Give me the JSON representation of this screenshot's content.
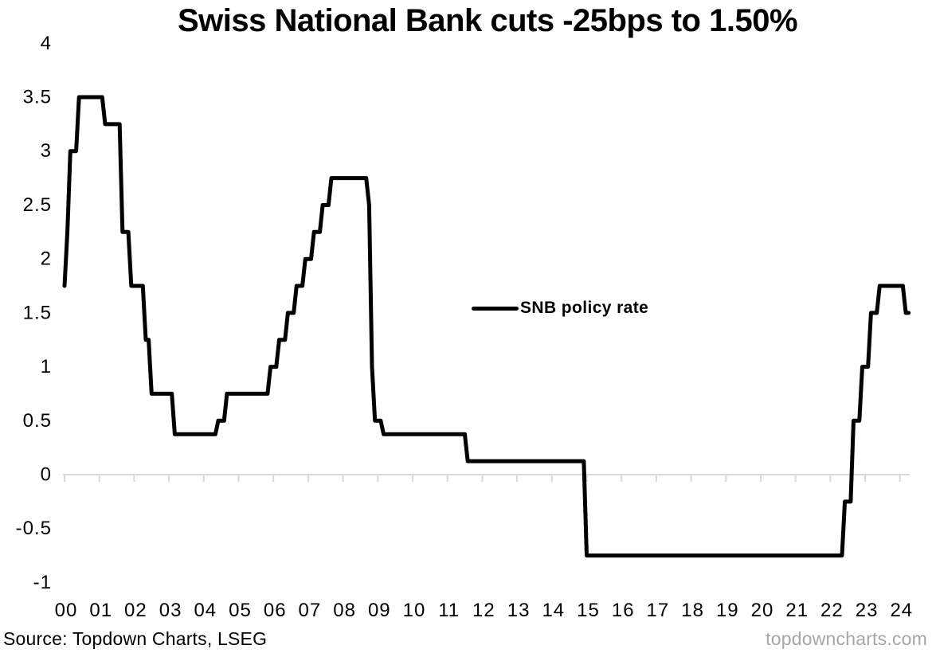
{
  "chart_data": {
    "type": "line",
    "title": "Swiss National Bank cuts -25bps to 1.50%",
    "legend_label": "SNB policy rate",
    "legend_position": "center-right inside plot",
    "grid": "zero-line only",
    "colors": {
      "line": "#000000",
      "grid": "#d9d9d9",
      "text": "#000000",
      "watermark": "#a6a6a6"
    },
    "x_axis": {
      "unit": "year",
      "start_year": 2000,
      "tick_labels": [
        "00",
        "01",
        "02",
        "03",
        "04",
        "05",
        "06",
        "07",
        "08",
        "09",
        "10",
        "11",
        "12",
        "13",
        "14",
        "15",
        "16",
        "17",
        "18",
        "19",
        "20",
        "21",
        "22",
        "23",
        "24"
      ]
    },
    "y_axis": {
      "ticks": [
        4,
        3.5,
        3,
        2.5,
        2,
        1.5,
        1,
        0.5,
        0,
        -0.5,
        -1
      ],
      "lim": [
        -1,
        4
      ]
    },
    "series": [
      {
        "name": "SNB policy rate",
        "frequency": "monthly",
        "start": "2000-01",
        "end": "2024-04",
        "values_by_year": {
          "2000": [
            1.75,
            2.25,
            3,
            3,
            3,
            3.5,
            3.5,
            3.5,
            3.5,
            3.5,
            3.5,
            3.5
          ],
          "2001": [
            3.5,
            3.5,
            3.25,
            3.25,
            3.25,
            3.25,
            3.25,
            3.25,
            2.25,
            2.25,
            2.25,
            1.75
          ],
          "2002": [
            1.75,
            1.75,
            1.75,
            1.75,
            1.25,
            1.25,
            0.75,
            0.75,
            0.75,
            0.75,
            0.75,
            0.75
          ],
          "2003": [
            0.75,
            0.75,
            0.375,
            0.375,
            0.375,
            0.375,
            0.375,
            0.375,
            0.375,
            0.375,
            0.375,
            0.375
          ],
          "2004": [
            0.375,
            0.375,
            0.375,
            0.375,
            0.375,
            0.5,
            0.5,
            0.5,
            0.75,
            0.75,
            0.75,
            0.75
          ],
          "2005": [
            0.75,
            0.75,
            0.75,
            0.75,
            0.75,
            0.75,
            0.75,
            0.75,
            0.75,
            0.75,
            0.75,
            1
          ],
          "2006": [
            1,
            1,
            1.25,
            1.25,
            1.25,
            1.5,
            1.5,
            1.5,
            1.75,
            1.75,
            1.75,
            2
          ],
          "2007": [
            2,
            2,
            2.25,
            2.25,
            2.25,
            2.5,
            2.5,
            2.5,
            2.75,
            2.75,
            2.75,
            2.75
          ],
          "2008": [
            2.75,
            2.75,
            2.75,
            2.75,
            2.75,
            2.75,
            2.75,
            2.75,
            2.75,
            2.5,
            1,
            0.5
          ],
          "2009": [
            0.5,
            0.5,
            0.375,
            0.375,
            0.375,
            0.375,
            0.375,
            0.375,
            0.375,
            0.375,
            0.375,
            0.375
          ],
          "2010": [
            0.375,
            0.375,
            0.375,
            0.375,
            0.375,
            0.375,
            0.375,
            0.375,
            0.375,
            0.375,
            0.375,
            0.375
          ],
          "2011": [
            0.375,
            0.375,
            0.375,
            0.375,
            0.375,
            0.375,
            0.375,
            0.125,
            0.125,
            0.125,
            0.125,
            0.125
          ],
          "2012": [
            0.125,
            0.125,
            0.125,
            0.125,
            0.125,
            0.125,
            0.125,
            0.125,
            0.125,
            0.125,
            0.125,
            0.125
          ],
          "2013": [
            0.125,
            0.125,
            0.125,
            0.125,
            0.125,
            0.125,
            0.125,
            0.125,
            0.125,
            0.125,
            0.125,
            0.125
          ],
          "2014": [
            0.125,
            0.125,
            0.125,
            0.125,
            0.125,
            0.125,
            0.125,
            0.125,
            0.125,
            0.125,
            0.125,
            0.125
          ],
          "2015": [
            -0.75,
            -0.75,
            -0.75,
            -0.75,
            -0.75,
            -0.75,
            -0.75,
            -0.75,
            -0.75,
            -0.75,
            -0.75,
            -0.75
          ],
          "2016": [
            -0.75,
            -0.75,
            -0.75,
            -0.75,
            -0.75,
            -0.75,
            -0.75,
            -0.75,
            -0.75,
            -0.75,
            -0.75,
            -0.75
          ],
          "2017": [
            -0.75,
            -0.75,
            -0.75,
            -0.75,
            -0.75,
            -0.75,
            -0.75,
            -0.75,
            -0.75,
            -0.75,
            -0.75,
            -0.75
          ],
          "2018": [
            -0.75,
            -0.75,
            -0.75,
            -0.75,
            -0.75,
            -0.75,
            -0.75,
            -0.75,
            -0.75,
            -0.75,
            -0.75,
            -0.75
          ],
          "2019": [
            -0.75,
            -0.75,
            -0.75,
            -0.75,
            -0.75,
            -0.75,
            -0.75,
            -0.75,
            -0.75,
            -0.75,
            -0.75,
            -0.75
          ],
          "2020": [
            -0.75,
            -0.75,
            -0.75,
            -0.75,
            -0.75,
            -0.75,
            -0.75,
            -0.75,
            -0.75,
            -0.75,
            -0.75,
            -0.75
          ],
          "2021": [
            -0.75,
            -0.75,
            -0.75,
            -0.75,
            -0.75,
            -0.75,
            -0.75,
            -0.75,
            -0.75,
            -0.75,
            -0.75,
            -0.75
          ],
          "2022": [
            -0.75,
            -0.75,
            -0.75,
            -0.75,
            -0.75,
            -0.25,
            -0.25,
            -0.25,
            0.5,
            0.5,
            0.5,
            1
          ],
          "2023": [
            1,
            1,
            1.5,
            1.5,
            1.5,
            1.75,
            1.75,
            1.75,
            1.75,
            1.75,
            1.75,
            1.75
          ],
          "2024": [
            1.75,
            1.75,
            1.5,
            1.5
          ]
        }
      }
    ]
  },
  "footer": {
    "source": "Source: Topdown Charts, LSEG",
    "watermark": "topdowncharts.com"
  }
}
